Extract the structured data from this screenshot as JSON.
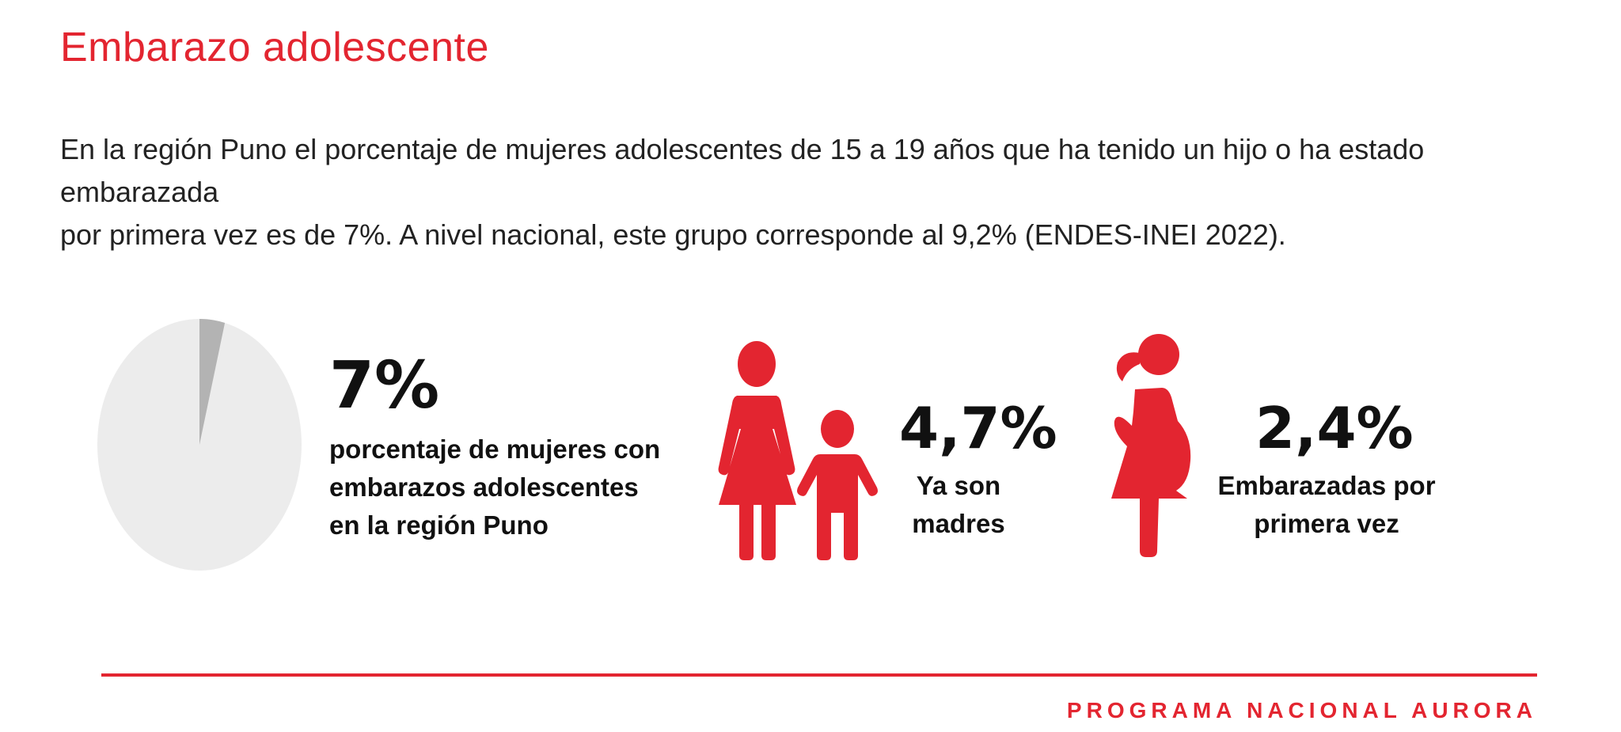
{
  "page": {
    "title": "Embarazo adolescente",
    "intro_line1": "En la región Puno el porcentaje de mujeres adolescentes de 15 a 19 años que ha tenido un hijo o ha estado embarazada",
    "intro_line2": "por primera vez es de 7%. A nivel nacional, este grupo corresponde al 9,2% (ENDES-INEI 2022).",
    "footer_brand": "PROGRAMA NACIONAL AURORA"
  },
  "stats": {
    "main": {
      "value": "7%",
      "desc_line1": "porcentaje de mujeres con",
      "desc_line2": "embarazos adolescentes",
      "desc_line3": "en la región Puno"
    },
    "mothers": {
      "value": "4,7%",
      "desc_line1": "Ya son",
      "desc_line2": "madres",
      "icon": "mother-and-child-icon"
    },
    "pregnant": {
      "value": "2,4%",
      "desc_line1": "Embarazadas por",
      "desc_line2": "primera vez",
      "icon": "pregnant-woman-icon"
    }
  },
  "colors": {
    "accent": "#e32530",
    "pie_base": "#ececec",
    "pie_slice": "#b3b3b3",
    "text_dark": "#111111"
  },
  "chart_data": {
    "type": "pie",
    "slices": [
      {
        "value": 4
      },
      {
        "value": 96
      }
    ]
  }
}
